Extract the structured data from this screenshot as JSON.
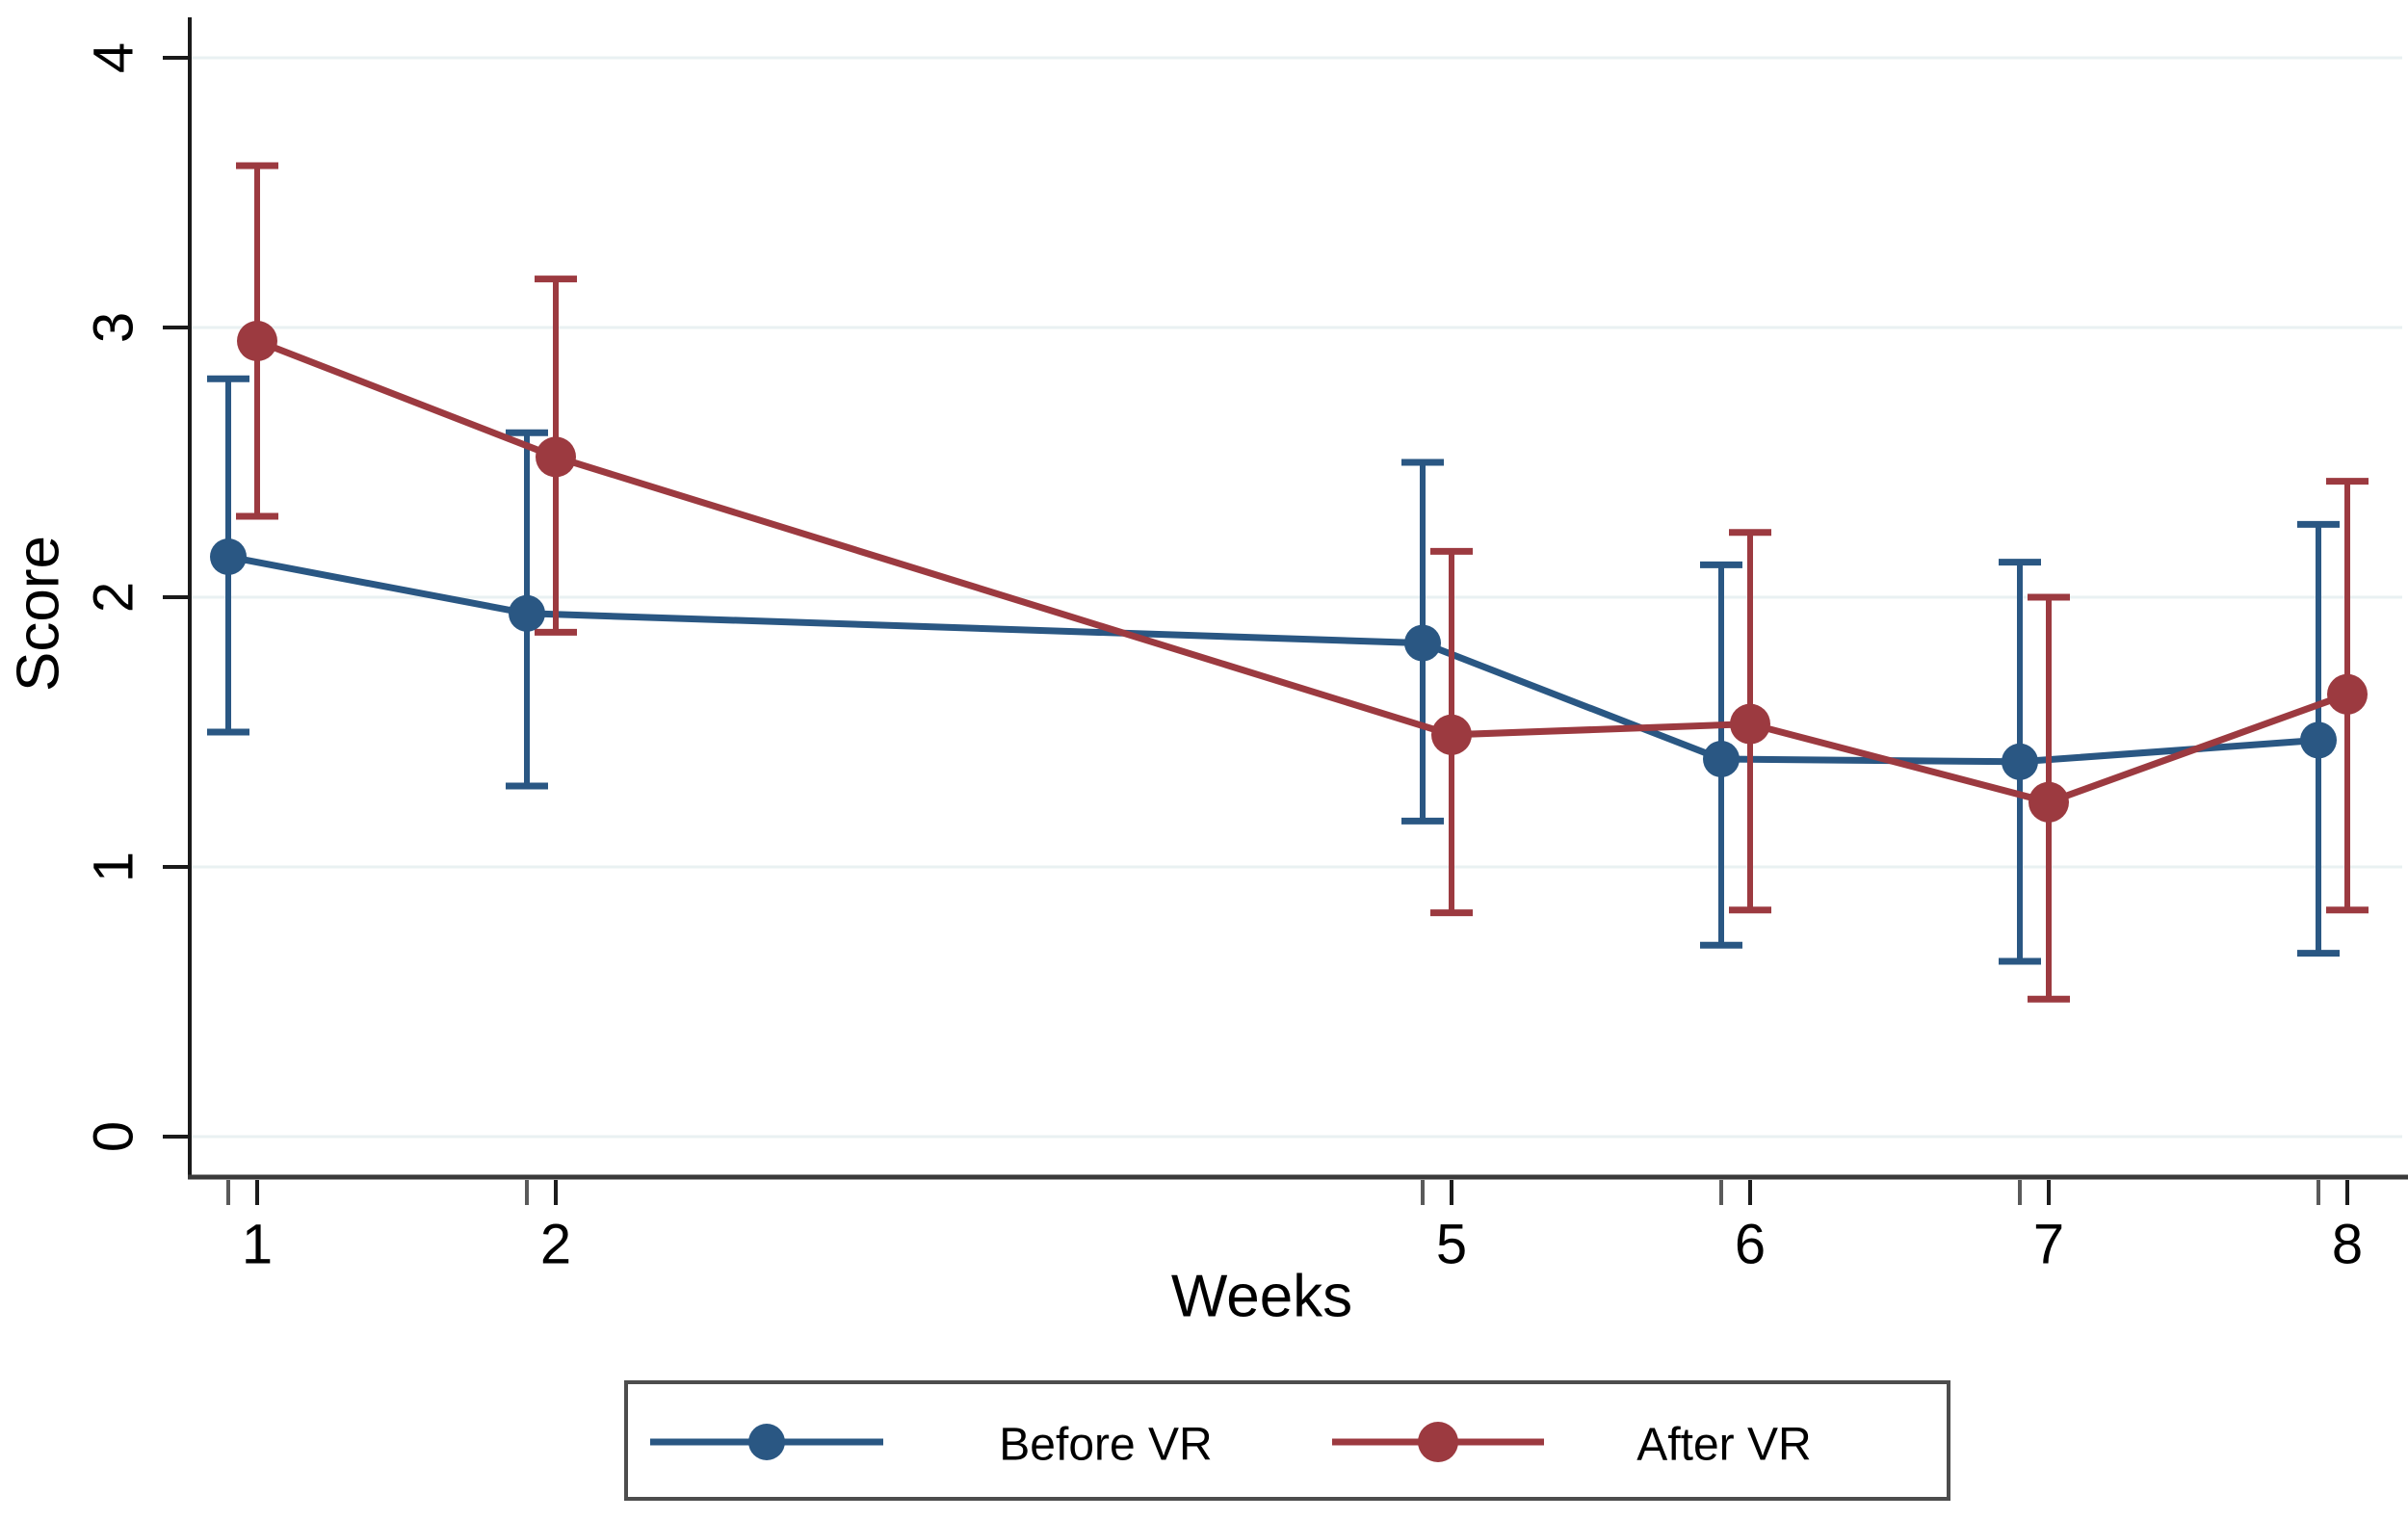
{
  "chart_data": {
    "type": "line",
    "title": "",
    "xlabel": "Weeks",
    "ylabel": "Score",
    "x": [
      1,
      2,
      5,
      6,
      7,
      8
    ],
    "x_tick_labels": [
      "1",
      "2",
      "5",
      "6",
      "7",
      "8"
    ],
    "xlim": [
      0.87,
      8.43
    ],
    "ylim": [
      -0.15,
      4.02
    ],
    "yticks": [
      0,
      1,
      2,
      3,
      4
    ],
    "y_tick_labels": [
      "0",
      "1",
      "2",
      "3",
      "4"
    ],
    "grid": "horizontal-only",
    "gridline_color": "#e9f1f2",
    "axis_color": "#1a1a1a",
    "legend_position": "bottom-boxed",
    "error_bars": "95% CI whiskers with caps",
    "series": [
      {
        "name": "Before VR",
        "color": "#2a5783",
        "jitter_weeks": 0,
        "marker": "circle",
        "marker_radius": 19,
        "values": [
          2.15,
          1.94,
          1.83,
          1.4,
          1.39,
          1.47
        ],
        "ci_low": [
          1.5,
          1.3,
          1.17,
          0.71,
          0.65,
          0.68
        ],
        "ci_high": [
          2.81,
          2.61,
          2.5,
          2.12,
          2.13,
          2.27
        ]
      },
      {
        "name": "After VR",
        "color": "#9c3a40",
        "jitter_weeks": 0.097,
        "marker": "circle",
        "marker_radius": 21,
        "values": [
          2.95,
          2.52,
          1.49,
          1.53,
          1.24,
          1.64
        ],
        "ci_low": [
          2.3,
          1.87,
          0.83,
          0.84,
          0.51,
          0.84
        ],
        "ci_high": [
          3.6,
          3.18,
          2.17,
          2.24,
          2.0,
          2.43
        ]
      }
    ]
  }
}
